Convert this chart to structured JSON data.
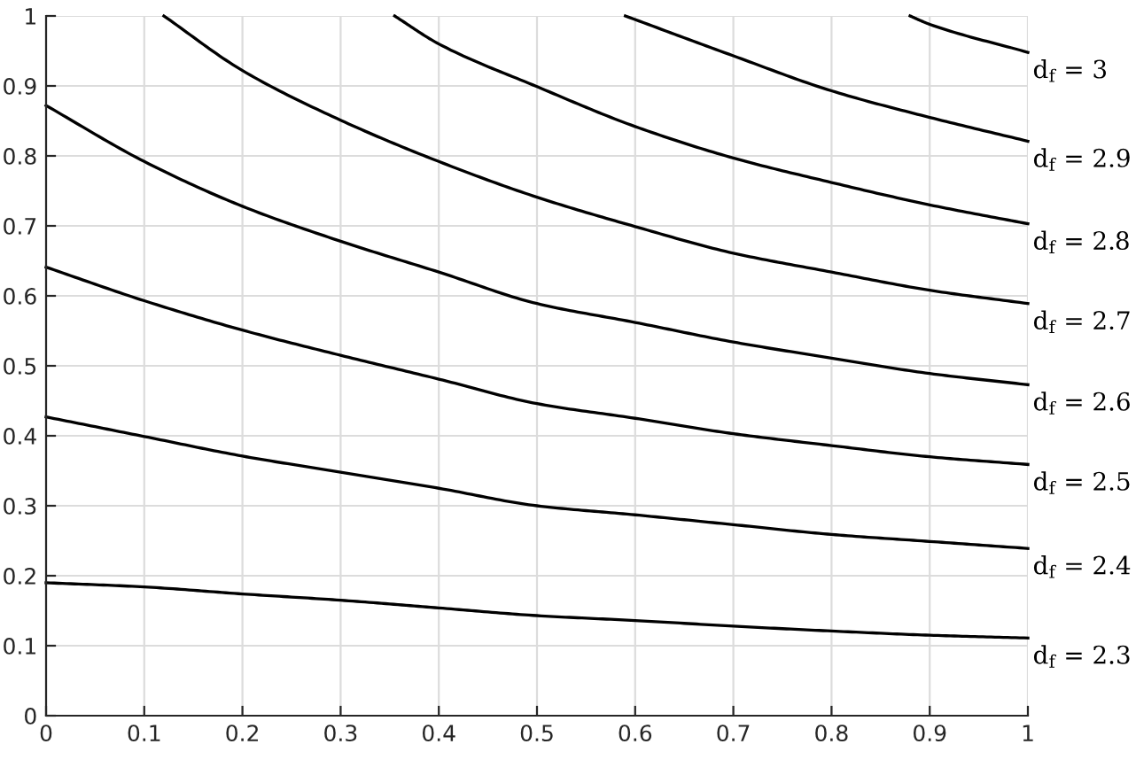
{
  "chart_data": {
    "type": "line",
    "xlim": [
      0,
      1
    ],
    "ylim": [
      0,
      1
    ],
    "xticks": [
      0,
      0.1,
      0.2,
      0.3,
      0.4,
      0.5,
      0.6,
      0.7,
      0.8,
      0.9,
      1
    ],
    "yticks": [
      0,
      0.1,
      0.2,
      0.3,
      0.4,
      0.5,
      0.6,
      0.7,
      0.8,
      0.9,
      1
    ],
    "grid": true,
    "legend": false,
    "marker": "none",
    "line_style": "solid",
    "series": [
      {
        "name": "d$_{f}$ = 3",
        "color": "#000000",
        "x": [
          0.88,
          0.9,
          1
        ],
        "values": [
          1,
          0.988,
          0.948
        ]
      },
      {
        "name": "d$_{f}$ = 2.9",
        "color": "#000000",
        "x": [
          0.59,
          0.7,
          0.8,
          0.9,
          1
        ],
        "values": [
          1,
          0.943,
          0.893,
          0.855,
          0.821
        ]
      },
      {
        "name": "d$_{f}$ = 2.8",
        "color": "#000000",
        "x": [
          0.355,
          0.4,
          0.5,
          0.6,
          0.7,
          0.8,
          0.9,
          1
        ],
        "values": [
          1,
          0.96,
          0.899,
          0.842,
          0.797,
          0.762,
          0.73,
          0.703
        ]
      },
      {
        "name": "d$_{f}$ = 2.7",
        "color": "#000000",
        "x": [
          0.12,
          0.2,
          0.3,
          0.4,
          0.5,
          0.6,
          0.7,
          0.8,
          0.9,
          1
        ],
        "values": [
          1,
          0.922,
          0.851,
          0.792,
          0.741,
          0.699,
          0.661,
          0.634,
          0.608,
          0.589
        ]
      },
      {
        "name": "d$_{f}$ = 2.6",
        "color": "#000000",
        "x": [
          0,
          0.1,
          0.2,
          0.3,
          0.4,
          0.5,
          0.6,
          0.7,
          0.8,
          0.9,
          1
        ],
        "values": [
          0.872,
          0.792,
          0.728,
          0.678,
          0.634,
          0.589,
          0.562,
          0.534,
          0.511,
          0.489,
          0.473
        ]
      },
      {
        "name": "d$_{f}$ = 2.5",
        "color": "#000000",
        "x": [
          0,
          0.1,
          0.2,
          0.3,
          0.4,
          0.5,
          0.6,
          0.7,
          0.8,
          0.9,
          1
        ],
        "values": [
          0.641,
          0.593,
          0.551,
          0.515,
          0.481,
          0.446,
          0.425,
          0.403,
          0.386,
          0.37,
          0.359
        ]
      },
      {
        "name": "d$_{f}$ = 2.4",
        "color": "#000000",
        "x": [
          0,
          0.1,
          0.2,
          0.3,
          0.4,
          0.5,
          0.6,
          0.7,
          0.8,
          0.9,
          1
        ],
        "values": [
          0.427,
          0.399,
          0.371,
          0.348,
          0.325,
          0.3,
          0.287,
          0.273,
          0.259,
          0.249,
          0.239
        ]
      },
      {
        "name": "d$_{f}$ = 2.3",
        "color": "#000000",
        "x": [
          0,
          0.1,
          0.2,
          0.3,
          0.4,
          0.5,
          0.6,
          0.7,
          0.8,
          0.9,
          1
        ],
        "values": [
          0.19,
          0.184,
          0.174,
          0.165,
          0.154,
          0.143,
          0.136,
          0.128,
          0.121,
          0.115,
          0.111
        ]
      }
    ]
  }
}
